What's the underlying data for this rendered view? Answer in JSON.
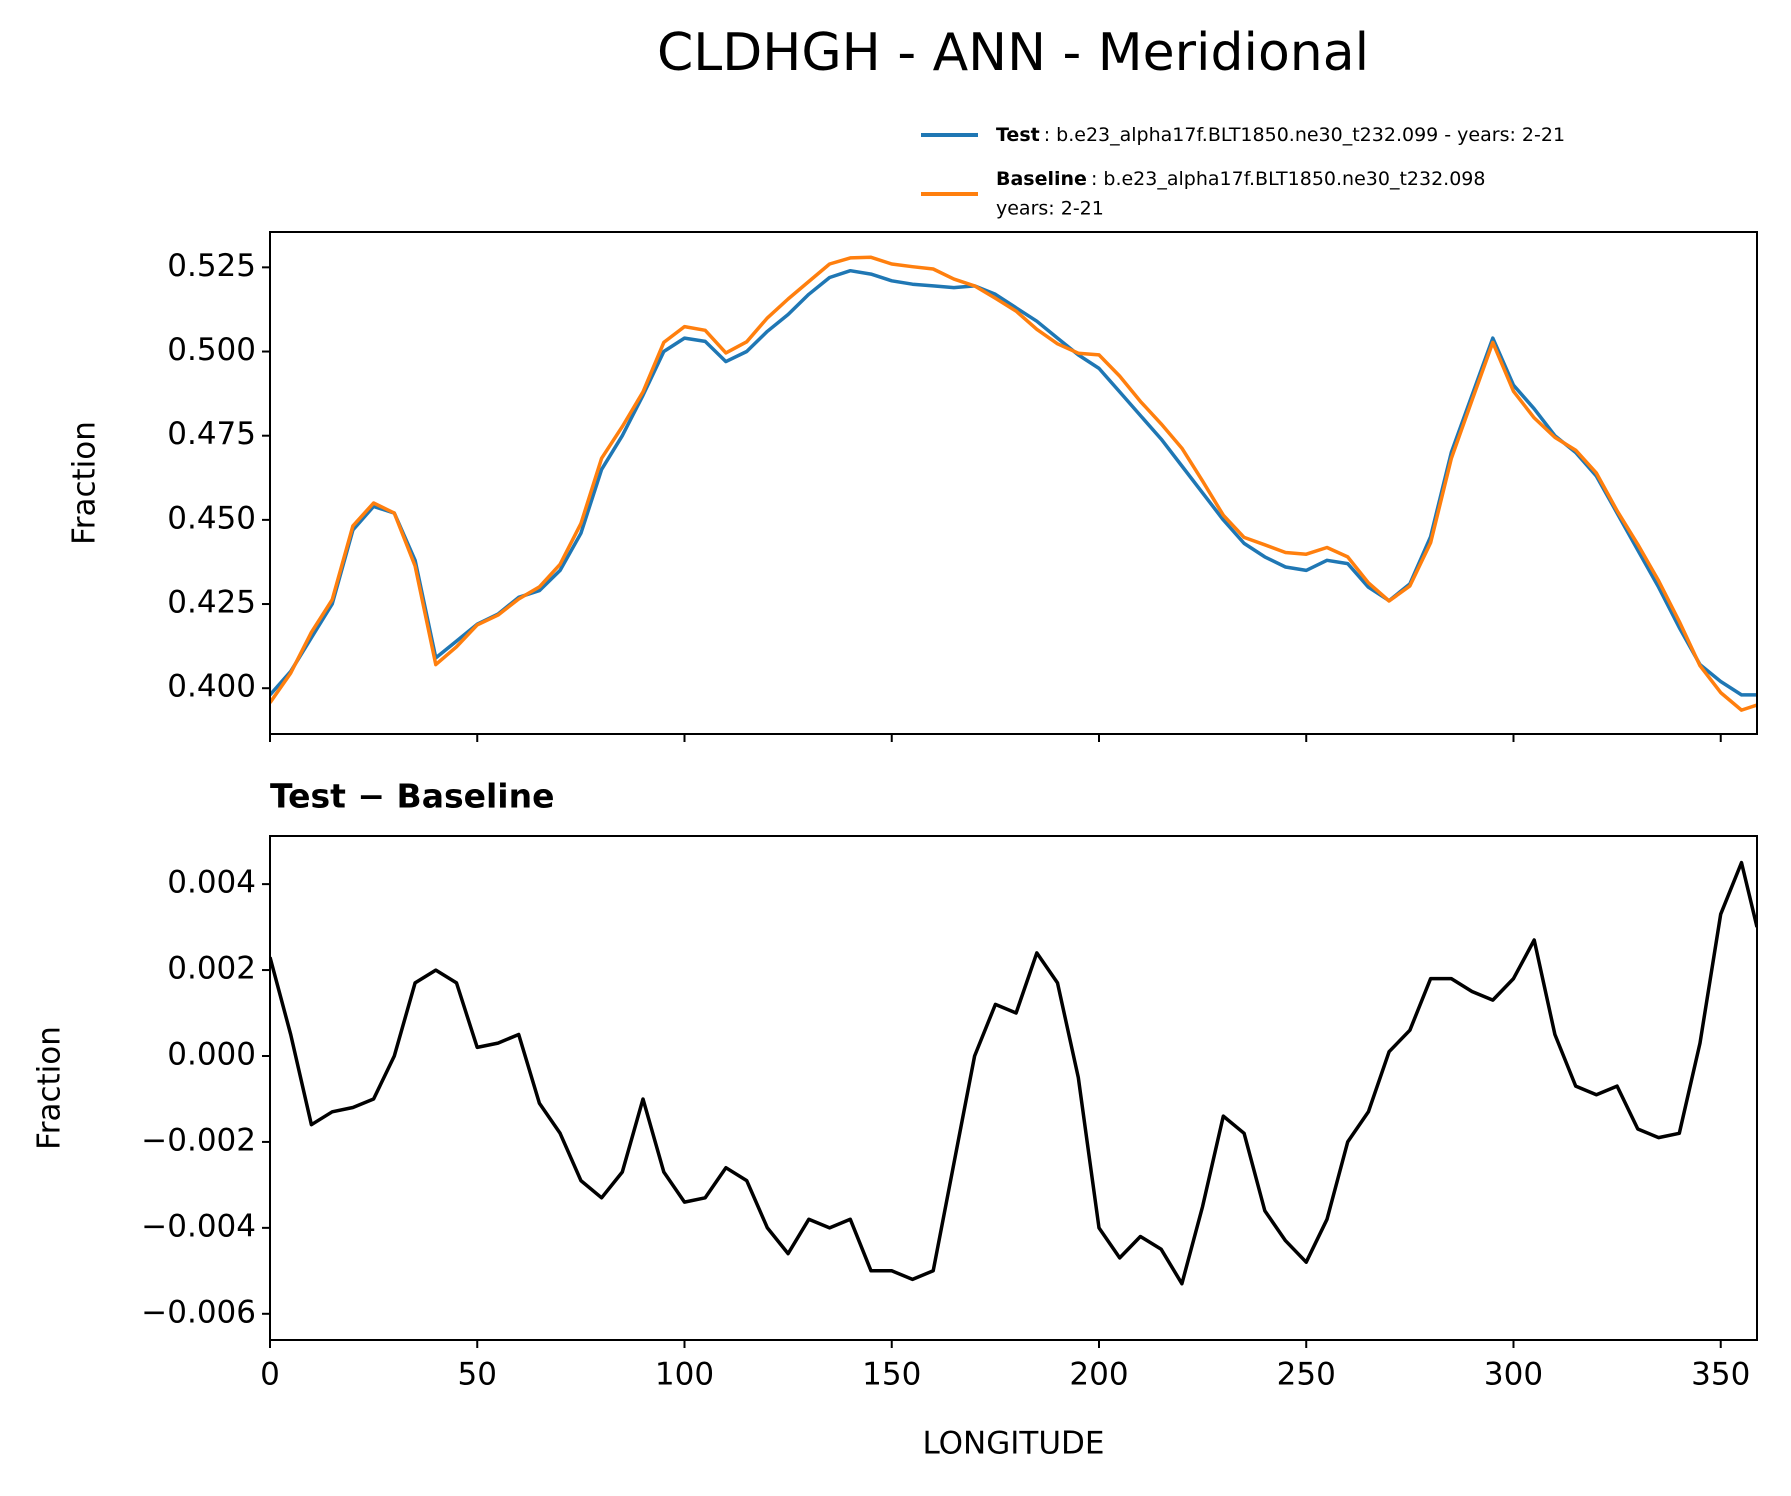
{
  "title": "CLDHGH - ANN - Meridional",
  "chart_data": [
    {
      "type": "line",
      "ylabel": "Fraction",
      "x": [
        0,
        5,
        10,
        15,
        20,
        25,
        30,
        35,
        40,
        45,
        50,
        55,
        60,
        65,
        70,
        75,
        80,
        85,
        90,
        95,
        100,
        105,
        110,
        115,
        120,
        125,
        130,
        135,
        140,
        145,
        150,
        155,
        160,
        165,
        170,
        175,
        180,
        185,
        190,
        195,
        200,
        205,
        210,
        215,
        220,
        225,
        230,
        235,
        240,
        245,
        250,
        255,
        260,
        265,
        270,
        275,
        280,
        285,
        290,
        295,
        300,
        305,
        310,
        315,
        320,
        325,
        330,
        335,
        340,
        345,
        350,
        355,
        358.75
      ],
      "series": [
        {
          "name": "Test",
          "label_lines": [
            ": b.e23_alpha17f.BLT1850.ne30_t232.099 - years: 2-21"
          ],
          "color": "#1f77b4",
          "values": [
            0.398,
            0.405,
            0.415,
            0.425,
            0.447,
            0.454,
            0.452,
            0.438,
            0.409,
            0.414,
            0.419,
            0.422,
            0.427,
            0.429,
            0.435,
            0.446,
            0.465,
            0.475,
            0.487,
            0.5,
            0.504,
            0.503,
            0.497,
            0.5,
            0.506,
            0.511,
            0.517,
            0.522,
            0.524,
            0.523,
            0.521,
            0.52,
            0.5195,
            0.519,
            0.5195,
            0.517,
            0.513,
            0.509,
            0.504,
            0.499,
            0.495,
            0.488,
            0.481,
            0.474,
            0.466,
            0.458,
            0.45,
            0.443,
            0.439,
            0.436,
            0.435,
            0.438,
            0.437,
            0.43,
            0.426,
            0.431,
            0.445,
            0.47,
            0.487,
            0.504,
            0.49,
            0.483,
            0.475,
            0.47,
            0.463,
            0.452,
            0.441,
            0.43,
            0.418,
            0.407,
            0.402,
            0.398,
            0.398
          ]
        },
        {
          "name": "Baseline",
          "label_lines": [
            ": b.e23_alpha17f.BLT1850.ne30_t232.098",
            "years: 2-21"
          ],
          "color": "#ff7f0e",
          "values": [
            0.3957,
            0.4045,
            0.4166,
            0.4263,
            0.4482,
            0.455,
            0.452,
            0.4363,
            0.407,
            0.4123,
            0.4188,
            0.4217,
            0.4265,
            0.4301,
            0.4368,
            0.4489,
            0.4683,
            0.4777,
            0.488,
            0.5027,
            0.5074,
            0.5063,
            0.4996,
            0.5029,
            0.51,
            0.5156,
            0.5208,
            0.526,
            0.5278,
            0.528,
            0.526,
            0.5252,
            0.5245,
            0.5215,
            0.5195,
            0.5158,
            0.512,
            0.5066,
            0.5023,
            0.4995,
            0.499,
            0.4927,
            0.4852,
            0.4785,
            0.4713,
            0.4615,
            0.4514,
            0.4448,
            0.4426,
            0.4403,
            0.4398,
            0.4418,
            0.439,
            0.4313,
            0.4259,
            0.4304,
            0.4432,
            0.4682,
            0.4855,
            0.5027,
            0.4882,
            0.4803,
            0.4745,
            0.4707,
            0.4639,
            0.4527,
            0.4427,
            0.4319,
            0.4198,
            0.4067,
            0.3987,
            0.3935,
            0.395
          ]
        }
      ],
      "xlim": [
        0,
        358.75
      ],
      "xticks": [
        0,
        50,
        100,
        150,
        200,
        250,
        300,
        350
      ],
      "ylim": [
        0.3864,
        0.5355
      ],
      "yticks": [
        {
          "value": 0.4,
          "label": "0.400"
        },
        {
          "value": 0.425,
          "label": "0.425"
        },
        {
          "value": 0.45,
          "label": "0.450"
        },
        {
          "value": 0.475,
          "label": "0.475"
        },
        {
          "value": 0.5,
          "label": "0.500"
        },
        {
          "value": 0.525,
          "label": "0.525"
        }
      ]
    },
    {
      "type": "line",
      "title": "Test − Baseline",
      "ylabel": "Fraction",
      "xlabel": "LONGITUDE",
      "x": [
        0,
        5,
        10,
        15,
        20,
        25,
        30,
        35,
        40,
        45,
        50,
        55,
        60,
        65,
        70,
        75,
        80,
        85,
        90,
        95,
        100,
        105,
        110,
        115,
        120,
        125,
        130,
        135,
        140,
        145,
        150,
        155,
        160,
        165,
        170,
        175,
        180,
        185,
        190,
        195,
        200,
        205,
        210,
        215,
        220,
        225,
        230,
        235,
        240,
        245,
        250,
        255,
        260,
        265,
        270,
        275,
        280,
        285,
        290,
        295,
        300,
        305,
        310,
        315,
        320,
        325,
        330,
        335,
        340,
        345,
        350,
        355,
        358.75
      ],
      "series": [
        {
          "color": "#000000",
          "values": [
            0.0023,
            0.0005,
            -0.0016,
            -0.0013,
            -0.0012,
            -0.001,
            0.0,
            0.0017,
            0.002,
            0.0017,
            0.0002,
            0.0003,
            0.0005,
            -0.0011,
            -0.0018,
            -0.0029,
            -0.0033,
            -0.0027,
            -0.001,
            -0.0027,
            -0.0034,
            -0.0033,
            -0.0026,
            -0.0029,
            -0.004,
            -0.0046,
            -0.0038,
            -0.004,
            -0.0038,
            -0.005,
            -0.005,
            -0.0052,
            -0.005,
            -0.0025,
            0.0,
            0.0012,
            0.001,
            0.0024,
            0.0017,
            -0.0005,
            -0.004,
            -0.0047,
            -0.0042,
            -0.0045,
            -0.0053,
            -0.0035,
            -0.0014,
            -0.0018,
            -0.0036,
            -0.0043,
            -0.0048,
            -0.0038,
            -0.002,
            -0.0013,
            0.0001,
            0.0006,
            0.0018,
            0.0018,
            0.0015,
            0.0013,
            0.0018,
            0.0027,
            0.0005,
            -0.0007,
            -0.0009,
            -0.0007,
            -0.0017,
            -0.0019,
            -0.0018,
            0.0003,
            0.0033,
            0.0045,
            0.003
          ]
        }
      ],
      "xlim": [
        0,
        358.75
      ],
      "xticks": [
        0,
        50,
        100,
        150,
        200,
        250,
        300,
        350
      ],
      "ylim": [
        -0.00661,
        0.00512
      ],
      "yticks": [
        {
          "value": -0.006,
          "label": "−0.006"
        },
        {
          "value": -0.004,
          "label": "−0.004"
        },
        {
          "value": -0.002,
          "label": "−0.002"
        },
        {
          "value": 0,
          "label": "0.000"
        },
        {
          "value": 0.002,
          "label": "0.002"
        },
        {
          "value": 0.004,
          "label": "0.004"
        }
      ]
    }
  ]
}
